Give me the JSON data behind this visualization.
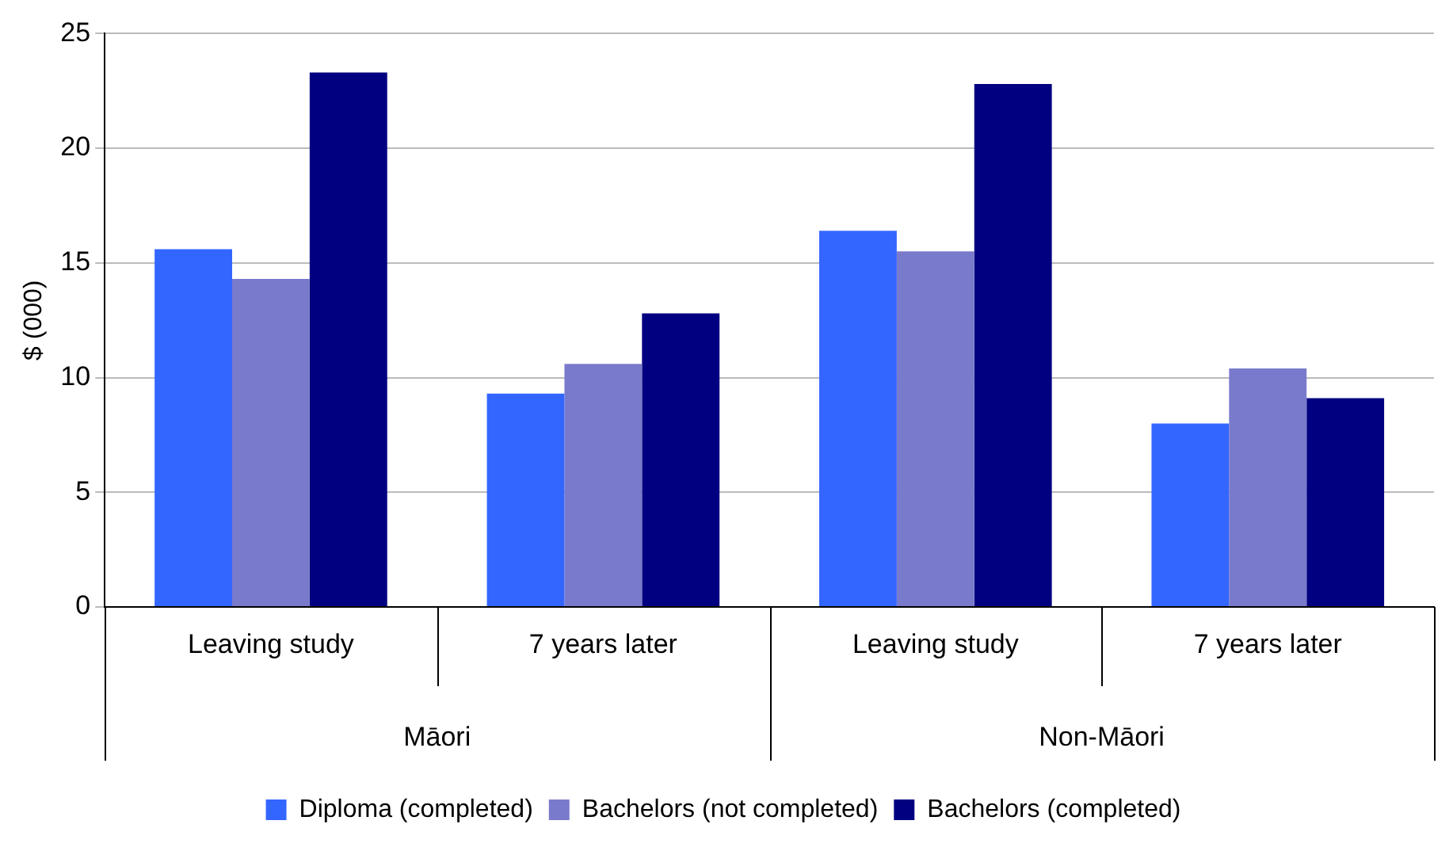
{
  "chart_data": {
    "type": "bar",
    "ylabel": "$ (000)",
    "categories": [
      "Leaving study",
      "7 years later",
      "Leaving study",
      "7 years later"
    ],
    "annotations": [
      "Māori",
      "Non-Māori"
    ],
    "series": [
      {
        "name": "Diploma (completed)",
        "color": "#3366ff",
        "values": [
          15.6,
          9.3,
          16.4,
          8.0
        ]
      },
      {
        "name": "Bachelors (not completed)",
        "color": "#7a7acc",
        "values": [
          14.3,
          10.6,
          15.5,
          10.4
        ]
      },
      {
        "name": "Bachelors (completed)",
        "color": "#000080",
        "values": [
          23.3,
          12.8,
          22.8,
          9.1
        ]
      }
    ],
    "ylim": [
      0,
      25
    ],
    "yticks": [
      0,
      5,
      10,
      15,
      20,
      25
    ],
    "grid": "y",
    "legend": "bottom"
  }
}
